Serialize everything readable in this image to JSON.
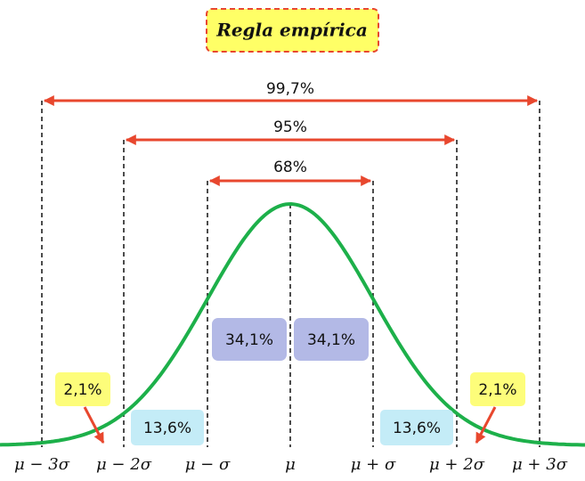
{
  "title": "Regla empírica",
  "ranges": [
    {
      "label": "99,7%"
    },
    {
      "label": "95%"
    },
    {
      "label": "68%"
    }
  ],
  "regions": {
    "center_left": "34,1%",
    "center_right": "34,1%",
    "mid_left": "13,6%",
    "mid_right": "13,6%",
    "tail_left": "2,1%",
    "tail_right": "2,1%"
  },
  "axis_labels": [
    "μ − 3σ",
    "μ − 2σ",
    "μ − σ",
    "μ",
    "μ + σ",
    "μ + 2σ",
    "μ + 3σ"
  ]
}
